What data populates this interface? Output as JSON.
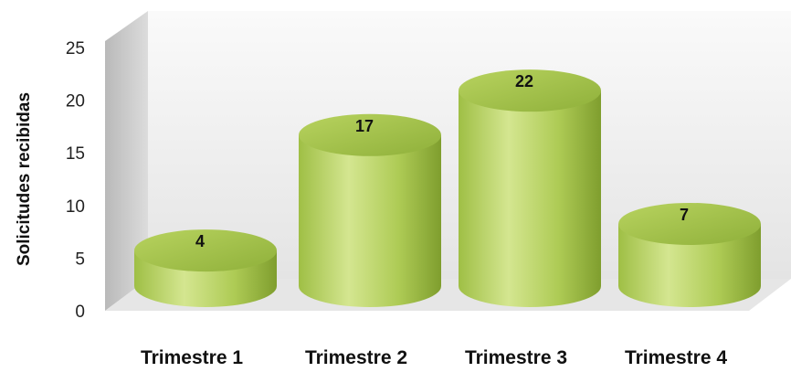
{
  "chart_data": {
    "type": "bar",
    "style": "3d-cylinder",
    "title": "",
    "xlabel": "",
    "ylabel": "Solicitudes recibidas",
    "categories": [
      "Trimestre 1",
      "Trimestre 2",
      "Trimestre 3",
      "Trimestre 4"
    ],
    "values": [
      4,
      17,
      22,
      7
    ],
    "ylim": [
      0,
      25
    ],
    "yticks": [
      0,
      5,
      10,
      15,
      20,
      25
    ],
    "grid": false,
    "legend": "none",
    "colors": {
      "bar_light": "#d3e58a",
      "bar_mid": "#a9c94e",
      "bar_dark": "#7e9c2c",
      "wall": "#eeeeee",
      "wall_side": "#c9c9c9"
    }
  }
}
